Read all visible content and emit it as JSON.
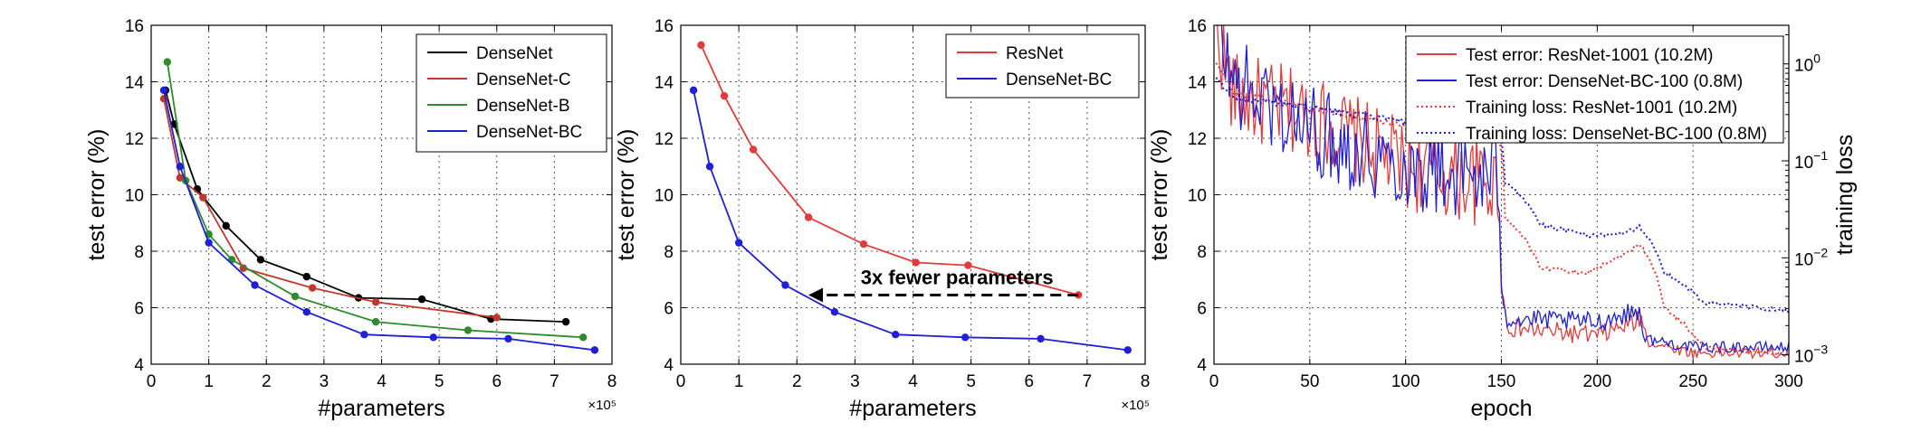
{
  "chart_data": [
    {
      "type": "line",
      "xlabel": "#parameters",
      "ylabel": "test error (%)",
      "x_multiplier": "×10⁵",
      "xlim": [
        0,
        8
      ],
      "ylim": [
        4,
        16
      ],
      "xticks": [
        0,
        1,
        2,
        3,
        4,
        5,
        6,
        7,
        8
      ],
      "yticks": [
        4,
        6,
        8,
        10,
        12,
        14,
        16
      ],
      "grid": true,
      "legend_position": "top-right",
      "series": [
        {
          "name": "DenseNet",
          "color": "#000000",
          "x": [
            0.25,
            0.4,
            0.8,
            1.3,
            1.9,
            2.7,
            3.6,
            4.7,
            5.9,
            7.2
          ],
          "y": [
            13.7,
            12.5,
            10.2,
            8.9,
            7.7,
            7.1,
            6.35,
            6.3,
            5.6,
            5.5
          ]
        },
        {
          "name": "DenseNet-C",
          "color": "#c0392b",
          "x": [
            0.22,
            0.5,
            0.9,
            1.6,
            2.8,
            3.9,
            6.0
          ],
          "y": [
            13.4,
            10.6,
            9.9,
            7.4,
            6.7,
            6.2,
            5.65
          ]
        },
        {
          "name": "DenseNet-B",
          "color": "#2e8b2e",
          "x": [
            0.28,
            0.6,
            1.0,
            1.4,
            2.5,
            3.9,
            5.5,
            7.5
          ],
          "y": [
            14.7,
            10.5,
            8.6,
            7.7,
            6.4,
            5.5,
            5.2,
            4.95
          ]
        },
        {
          "name": "DenseNet-BC",
          "color": "#1f1fd6",
          "x": [
            0.22,
            0.5,
            1.0,
            1.8,
            2.7,
            3.7,
            4.9,
            6.2,
            7.7
          ],
          "y": [
            13.7,
            11.0,
            8.3,
            6.8,
            5.85,
            5.05,
            4.95,
            4.9,
            4.5
          ]
        }
      ]
    },
    {
      "type": "line",
      "xlabel": "#parameters",
      "ylabel": "test error (%)",
      "x_multiplier": "×10⁵",
      "xlim": [
        0,
        8
      ],
      "ylim": [
        4,
        16
      ],
      "xticks": [
        0,
        1,
        2,
        3,
        4,
        5,
        6,
        7,
        8
      ],
      "yticks": [
        4,
        6,
        8,
        10,
        12,
        14,
        16
      ],
      "grid": true,
      "legend_position": "top-right",
      "annotation": {
        "text": "3x fewer parameters",
        "arrow_from": [
          6.85,
          6.45
        ],
        "arrow_to": [
          2.2,
          6.45
        ]
      },
      "series": [
        {
          "name": "ResNet",
          "color": "#e23b3b",
          "x": [
            0.35,
            0.75,
            1.25,
            2.2,
            3.15,
            4.05,
            4.95,
            6.85
          ],
          "y": [
            15.3,
            13.5,
            11.6,
            9.2,
            8.25,
            7.6,
            7.5,
            6.45
          ]
        },
        {
          "name": "DenseNet-BC",
          "color": "#1f1fd6",
          "x": [
            0.22,
            0.5,
            1.0,
            1.8,
            2.65,
            3.7,
            4.9,
            6.2,
            7.7
          ],
          "y": [
            13.7,
            11.0,
            8.3,
            6.8,
            5.85,
            5.05,
            4.95,
            4.9,
            4.5
          ]
        }
      ]
    },
    {
      "type": "line",
      "xlabel": "epoch",
      "ylabel": "test error (%)",
      "ylabel_right": "training loss",
      "xlim": [
        0,
        300
      ],
      "ylim": [
        4,
        16
      ],
      "ylim_right_log": [
        0.0008,
        2.5
      ],
      "xticks": [
        0,
        50,
        100,
        150,
        200,
        250,
        300
      ],
      "yticks": [
        4,
        6,
        8,
        10,
        12,
        14,
        16
      ],
      "yticks_right": [
        {
          "value": 0.001,
          "base": "10",
          "exp": "−3"
        },
        {
          "value": 0.01,
          "base": "10",
          "exp": "−2"
        },
        {
          "value": 0.1,
          "base": "10",
          "exp": "−1"
        },
        {
          "value": 1,
          "base": "10",
          "exp": "0"
        }
      ],
      "right_axis_scale": "log",
      "grid": true,
      "legend_position": "top-right",
      "series": [
        {
          "name": "Test error: ResNet-1001 (10.2M)",
          "color": "#e23b3b",
          "style": "solid",
          "axis": "left",
          "pattern": [
            [
              1,
              16
            ],
            [
              10,
              13.5
            ],
            [
              50,
              12.8
            ],
            [
              100,
              11.0
            ],
            [
              149,
              10.3
            ],
            [
              150,
              6.8
            ],
            [
              153,
              5.3
            ],
            [
              200,
              5.0
            ],
            [
              224,
              5.6
            ],
            [
              226,
              4.8
            ],
            [
              250,
              4.4
            ],
            [
              300,
              4.4
            ]
          ]
        },
        {
          "name": "Test error: DenseNet-BC-100 (0.8M)",
          "color": "#1f1fd6",
          "style": "solid",
          "axis": "left",
          "pattern": [
            [
              1,
              16
            ],
            [
              10,
              14
            ],
            [
              50,
              12.3
            ],
            [
              100,
              11.0
            ],
            [
              149,
              10.5
            ],
            [
              150,
              6.8
            ],
            [
              153,
              5.6
            ],
            [
              200,
              5.5
            ],
            [
              222,
              5.9
            ],
            [
              225,
              4.9
            ],
            [
              250,
              4.6
            ],
            [
              300,
              4.6
            ]
          ]
        },
        {
          "name": "Training loss: ResNet-1001 (10.2M)",
          "color": "#e23b3b",
          "style": "dotted",
          "axis": "right",
          "pattern": [
            [
              1,
              1.0
            ],
            [
              10,
              0.5
            ],
            [
              50,
              0.35
            ],
            [
              100,
              0.22
            ],
            [
              149,
              0.17
            ],
            [
              152,
              0.025
            ],
            [
              170,
              0.008
            ],
            [
              195,
              0.007
            ],
            [
              215,
              0.011
            ],
            [
              222,
              0.014
            ],
            [
              235,
              0.003
            ],
            [
              255,
              0.0012
            ],
            [
              300,
              0.001
            ]
          ]
        },
        {
          "name": "Training loss: DenseNet-BC-100 (0.8M)",
          "color": "#1f1fd6",
          "style": "dotted",
          "axis": "right",
          "pattern": [
            [
              1,
              0.7
            ],
            [
              10,
              0.45
            ],
            [
              50,
              0.35
            ],
            [
              100,
              0.25
            ],
            [
              149,
              0.22
            ],
            [
              152,
              0.06
            ],
            [
              170,
              0.022
            ],
            [
              195,
              0.017
            ],
            [
              215,
              0.018
            ],
            [
              222,
              0.021
            ],
            [
              235,
              0.007
            ],
            [
              255,
              0.0035
            ],
            [
              300,
              0.0028
            ]
          ]
        }
      ]
    }
  ]
}
